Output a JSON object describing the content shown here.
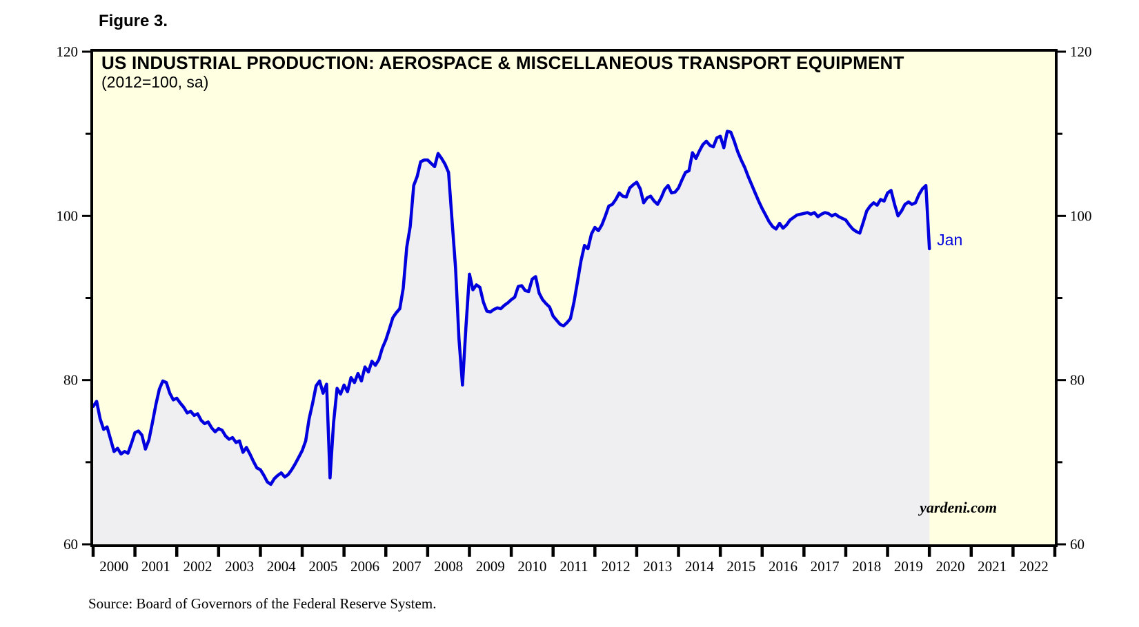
{
  "chart_data": {
    "type": "line",
    "figure_label": "Figure 3.",
    "title": "US INDUSTRIAL PRODUCTION: AEROSPACE & MISCELLANEOUS TRANSPORT EQUIPMENT",
    "subtitle": "(2012=100, sa)",
    "watermark": "yardeni.com",
    "end_label": "Jan",
    "source_note": "Source: Board of Governors of the Federal Reserve System.",
    "xlabel": "",
    "ylabel": "",
    "ylim": [
      60,
      120
    ],
    "grid": false,
    "legend": "none",
    "colors": {
      "line": "#0000DE",
      "area_fill": "#EFEFF2",
      "plot_bg": "#FFFFE2",
      "axis": "#000000",
      "annotation": "#0000DE"
    },
    "x_axis": {
      "tick_years": [
        2000,
        2001,
        2002,
        2003,
        2004,
        2005,
        2006,
        2007,
        2008,
        2009,
        2010,
        2011,
        2012,
        2013,
        2014,
        2015,
        2016,
        2017,
        2018,
        2019,
        2020,
        2021,
        2022,
        2023
      ],
      "labels": [
        "2000",
        "2001",
        "2002",
        "2003",
        "2004",
        "2005",
        "2006",
        "2007",
        "2008",
        "2009",
        "2010",
        "2011",
        "2012",
        "2013",
        "2014",
        "2015",
        "2016",
        "2017",
        "2018",
        "2019",
        "2020",
        "2021",
        "2022"
      ]
    },
    "y_axis": {
      "major_ticks": [
        60,
        80,
        100,
        120
      ],
      "minor_ticks": [
        70,
        90,
        110
      ],
      "labels_both_sides": true
    },
    "series": [
      {
        "name": "US Industrial Production: Aerospace & Miscellaneous Transport Equipment (2012=100, sa)",
        "frequency": "monthly",
        "start_year": 2000,
        "end_point": {
          "label": "Jan",
          "year": 2020,
          "value": 96.0
        },
        "values": [
          76.8,
          77.4,
          75.3,
          74.0,
          74.3,
          72.8,
          71.3,
          71.7,
          71.0,
          71.3,
          71.1,
          72.3,
          73.6,
          73.8,
          73.3,
          71.6,
          72.7,
          74.8,
          77.0,
          78.9,
          79.9,
          79.7,
          78.4,
          77.6,
          77.8,
          77.2,
          76.7,
          76.0,
          76.2,
          75.7,
          75.9,
          75.1,
          74.7,
          74.9,
          74.2,
          73.7,
          74.1,
          73.9,
          73.2,
          72.8,
          73.0,
          72.4,
          72.6,
          71.2,
          71.8,
          71.0,
          70.1,
          69.3,
          69.1,
          68.4,
          67.6,
          67.3,
          68.0,
          68.4,
          68.7,
          68.2,
          68.5,
          69.1,
          69.8,
          70.6,
          71.4,
          72.6,
          75.3,
          77.2,
          79.3,
          79.9,
          78.4,
          79.5,
          68.1,
          74.8,
          79.0,
          78.3,
          79.4,
          78.6,
          80.3,
          79.7,
          80.8,
          79.9,
          81.6,
          81.0,
          82.3,
          81.8,
          82.5,
          83.9,
          84.9,
          86.2,
          87.6,
          88.2,
          88.7,
          91.2,
          96.2,
          98.7,
          103.7,
          104.8,
          106.6,
          106.8,
          106.8,
          106.4,
          106.0,
          107.6,
          107.0,
          106.3,
          105.3,
          99.5,
          93.7,
          85.0,
          79.4,
          86.5,
          92.9,
          91.0,
          91.6,
          91.3,
          89.5,
          88.4,
          88.3,
          88.6,
          88.8,
          88.7,
          89.1,
          89.4,
          89.8,
          90.1,
          91.4,
          91.5,
          90.9,
          90.8,
          92.3,
          92.6,
          90.6,
          89.8,
          89.3,
          88.9,
          87.8,
          87.3,
          86.8,
          86.6,
          87.0,
          87.5,
          89.5,
          92.0,
          94.5,
          96.4,
          96.0,
          97.8,
          98.6,
          98.2,
          98.9,
          100.0,
          101.2,
          101.4,
          102.0,
          102.8,
          102.4,
          102.3,
          103.4,
          103.8,
          104.1,
          103.3,
          101.6,
          102.2,
          102.4,
          101.8,
          101.4,
          102.2,
          103.2,
          103.7,
          102.8,
          102.9,
          103.4,
          104.4,
          105.3,
          105.5,
          107.7,
          107.0,
          107.9,
          108.7,
          109.1,
          108.6,
          108.4,
          109.5,
          109.7,
          108.3,
          110.3,
          110.2,
          109.1,
          107.8,
          106.8,
          105.9,
          104.8,
          103.8,
          102.8,
          101.8,
          100.9,
          100.1,
          99.3,
          98.7,
          98.4,
          99.1,
          98.5,
          98.9,
          99.5,
          99.8,
          100.1,
          100.2,
          100.3,
          100.4,
          100.2,
          100.4,
          99.9,
          100.2,
          100.4,
          100.3,
          100.0,
          100.2,
          99.9,
          99.7,
          99.5,
          98.9,
          98.4,
          98.1,
          97.9,
          99.2,
          100.6,
          101.2,
          101.6,
          101.3,
          102.0,
          101.8,
          102.8,
          103.1,
          101.4,
          100.0,
          100.6,
          101.4,
          101.7,
          101.4,
          101.6,
          102.6,
          103.3,
          103.7,
          96.0
        ]
      }
    ]
  }
}
